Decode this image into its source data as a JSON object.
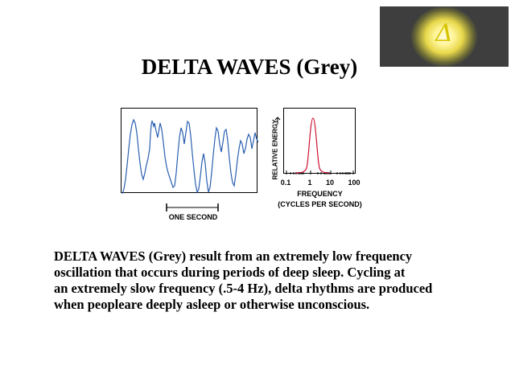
{
  "badge": {
    "symbol": "Δ",
    "icon": "delta-glow-icon"
  },
  "title": "DELTA WAVES (Grey)",
  "eeg": {
    "scale_label": "ONE SECOND"
  },
  "spectrum": {
    "ylabel": "RELATIVE ENERGY",
    "ticks": [
      "0.1",
      "1",
      "10",
      "100"
    ],
    "xlabel_line1": "FREQUENCY",
    "xlabel_line2": "(CYCLES PER SECOND)"
  },
  "paragraph": {
    "line1": "DELTA WAVES (Grey) result from an extremely low frequency",
    "line2": "oscillation that occurs during periods of deep sleep.  Cycling at",
    "line3": "an extremely slow frequency (.5-4 Hz), delta rhythms are produced",
    "line4": "when peopleare deeply asleep or otherwise unconscious."
  },
  "colors": {
    "trace": "#2a5fb0",
    "spectrum_curve": "#cc1133",
    "badge_glow": "#fff59a"
  }
}
